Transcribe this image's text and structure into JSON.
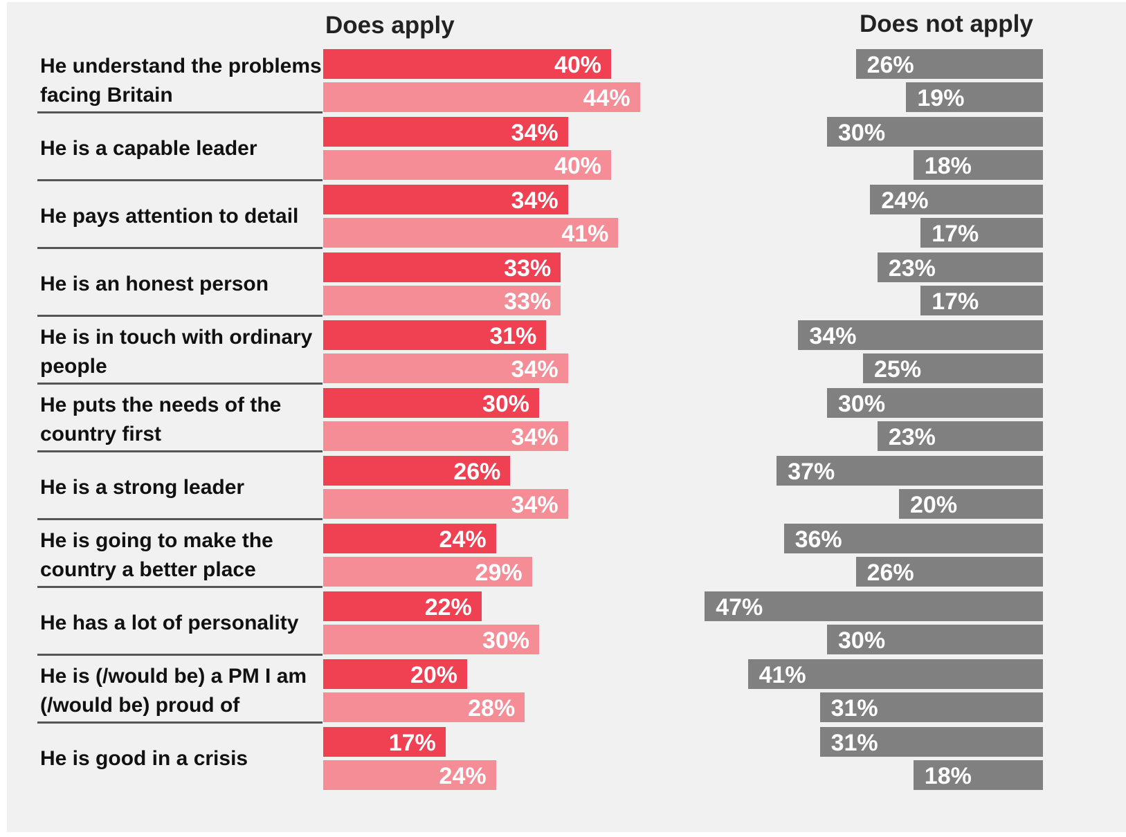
{
  "chart_data": {
    "type": "bar",
    "headers": {
      "left": "Does apply",
      "right": "Does not apply"
    },
    "categories": [
      "He understand the problems facing Britain",
      "He is a capable leader",
      "He pays attention to detail",
      "He is an honest person",
      "He is in touch with ordinary people",
      "He puts the needs of the country first",
      "He is a strong leader",
      "He is going to make the country a better place",
      "He has a lot of personality",
      "He is (/would be) a PM I am (/would be) proud of",
      "He is good in a crisis"
    ],
    "series": [
      {
        "group": "Does apply",
        "values": [
          40,
          34,
          34,
          33,
          31,
          30,
          26,
          24,
          22,
          20,
          17
        ],
        "color": "#ef4152"
      },
      {
        "group": "Does apply",
        "values": [
          44,
          40,
          41,
          33,
          34,
          34,
          34,
          29,
          30,
          28,
          24
        ],
        "color": "#f58d96"
      },
      {
        "group": "Does not apply",
        "values": [
          26,
          30,
          24,
          23,
          34,
          30,
          37,
          36,
          47,
          41,
          31
        ],
        "color": "#808080"
      },
      {
        "group": "Does not apply",
        "values": [
          19,
          18,
          17,
          17,
          25,
          23,
          20,
          26,
          30,
          31,
          18
        ],
        "color": "#808080"
      }
    ],
    "value_suffix": "%",
    "left_xlim": [
      0,
      50
    ],
    "right_xlim": [
      0,
      50
    ],
    "grid": false,
    "legend": "none"
  }
}
